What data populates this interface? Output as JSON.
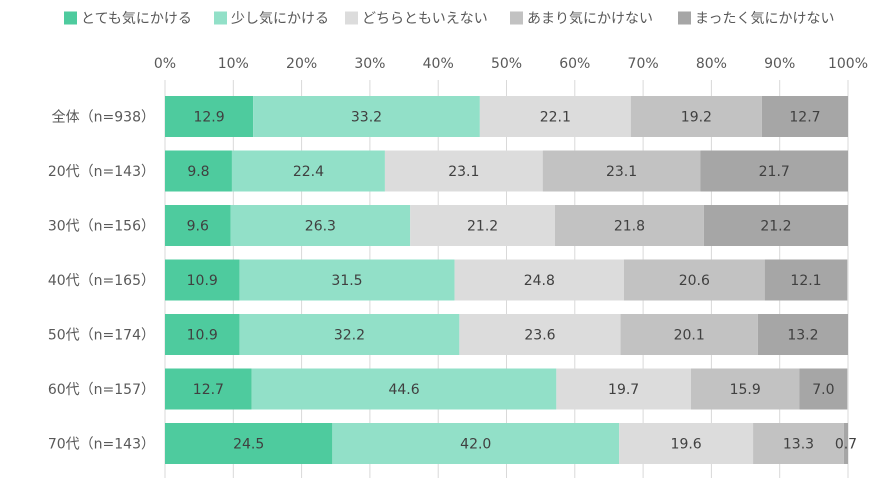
{
  "chart_data": {
    "type": "bar",
    "orientation": "horizontal-stacked-100",
    "title": "",
    "xlabel": "",
    "ylabel": "",
    "xlim": [
      0,
      100
    ],
    "ticks": [
      "0%",
      "10%",
      "20%",
      "30%",
      "40%",
      "50%",
      "60%",
      "70%",
      "80%",
      "90%",
      "100%"
    ],
    "grid": true,
    "legend_position": "top",
    "categories": [
      "全体（n=938）",
      "20代（n=143）",
      "30代（n=156）",
      "40代（n=165）",
      "50代（n=174）",
      "60代（n=157）",
      "70代（n=143）"
    ],
    "series": [
      {
        "name": "とても気にかける",
        "color": "#4ecb9e",
        "values": [
          12.9,
          9.8,
          9.6,
          10.9,
          10.9,
          12.7,
          24.5
        ],
        "labels": [
          "12.9",
          "9.8",
          "9.6",
          "10.9",
          "10.9",
          "12.7",
          "24.5"
        ]
      },
      {
        "name": "少し気にかける",
        "color": "#92e0c8",
        "values": [
          33.2,
          22.4,
          26.3,
          31.5,
          32.2,
          44.6,
          42.0
        ],
        "labels": [
          "33.2",
          "22.4",
          "26.3",
          "31.5",
          "32.2",
          "44.6",
          "42.0"
        ]
      },
      {
        "name": "どちらともいえない",
        "color": "#dcdcdc",
        "values": [
          22.1,
          23.1,
          21.2,
          24.8,
          23.6,
          19.7,
          19.6
        ],
        "labels": [
          "22.1",
          "23.1",
          "21.2",
          "24.8",
          "23.6",
          "19.7",
          "19.6"
        ]
      },
      {
        "name": "あまり気にかけない",
        "color": "#c2c2c2",
        "values": [
          19.2,
          23.1,
          21.8,
          20.6,
          20.1,
          15.9,
          13.3
        ],
        "labels": [
          "19.2",
          "23.1",
          "21.8",
          "20.6",
          "20.1",
          "15.9",
          "13.3"
        ]
      },
      {
        "name": "まったく気にかけない",
        "color": "#a6a6a6",
        "values": [
          12.7,
          21.7,
          21.2,
          12.1,
          13.2,
          7.0,
          0.7
        ],
        "labels": [
          "12.7",
          "21.7",
          "21.2",
          "12.1",
          "13.2",
          "7.0",
          "0.7"
        ]
      }
    ]
  }
}
